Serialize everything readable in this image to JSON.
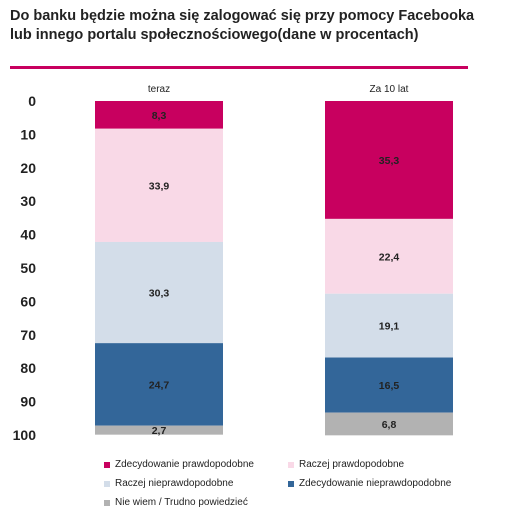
{
  "title": "Do banku będzie można się zalogować się przy pomocy Facebooka lub innego portalu społecznościowego(dane w procentach)",
  "chart_data": {
    "type": "bar",
    "stacked": true,
    "orientation": "vertical",
    "y_axis_inverted": true,
    "ylim": [
      0,
      100
    ],
    "yticks": [
      0,
      10,
      20,
      30,
      40,
      50,
      60,
      70,
      80,
      90,
      100
    ],
    "categories": [
      "teraz",
      "Za 10 lat"
    ],
    "series": [
      {
        "name": "Zdecydowanie prawdopodobne",
        "color": "#c8005f",
        "values": [
          8.3,
          35.3
        ],
        "labels": [
          "8,3",
          "35,3"
        ]
      },
      {
        "name": "Raczej prawdopodobne",
        "color": "#f9d9e7",
        "values": [
          33.9,
          22.4
        ],
        "labels": [
          "33,9",
          "22,4"
        ]
      },
      {
        "name": "Raczej nieprawdopodobne",
        "color": "#d3dde9",
        "values": [
          30.3,
          19.1
        ],
        "labels": [
          "30,3",
          "19,1"
        ]
      },
      {
        "name": "Zdecydowanie nieprawdopodobne",
        "color": "#336699",
        "values": [
          24.7,
          16.5
        ],
        "labels": [
          "24,7",
          "16,5"
        ]
      },
      {
        "name": "Nie wiem / Trudno powiedzieć",
        "color": "#b2b2b2",
        "values": [
          2.7,
          6.8
        ],
        "labels": [
          "2,7",
          "6,8"
        ]
      }
    ],
    "legend_position": "bottom"
  }
}
